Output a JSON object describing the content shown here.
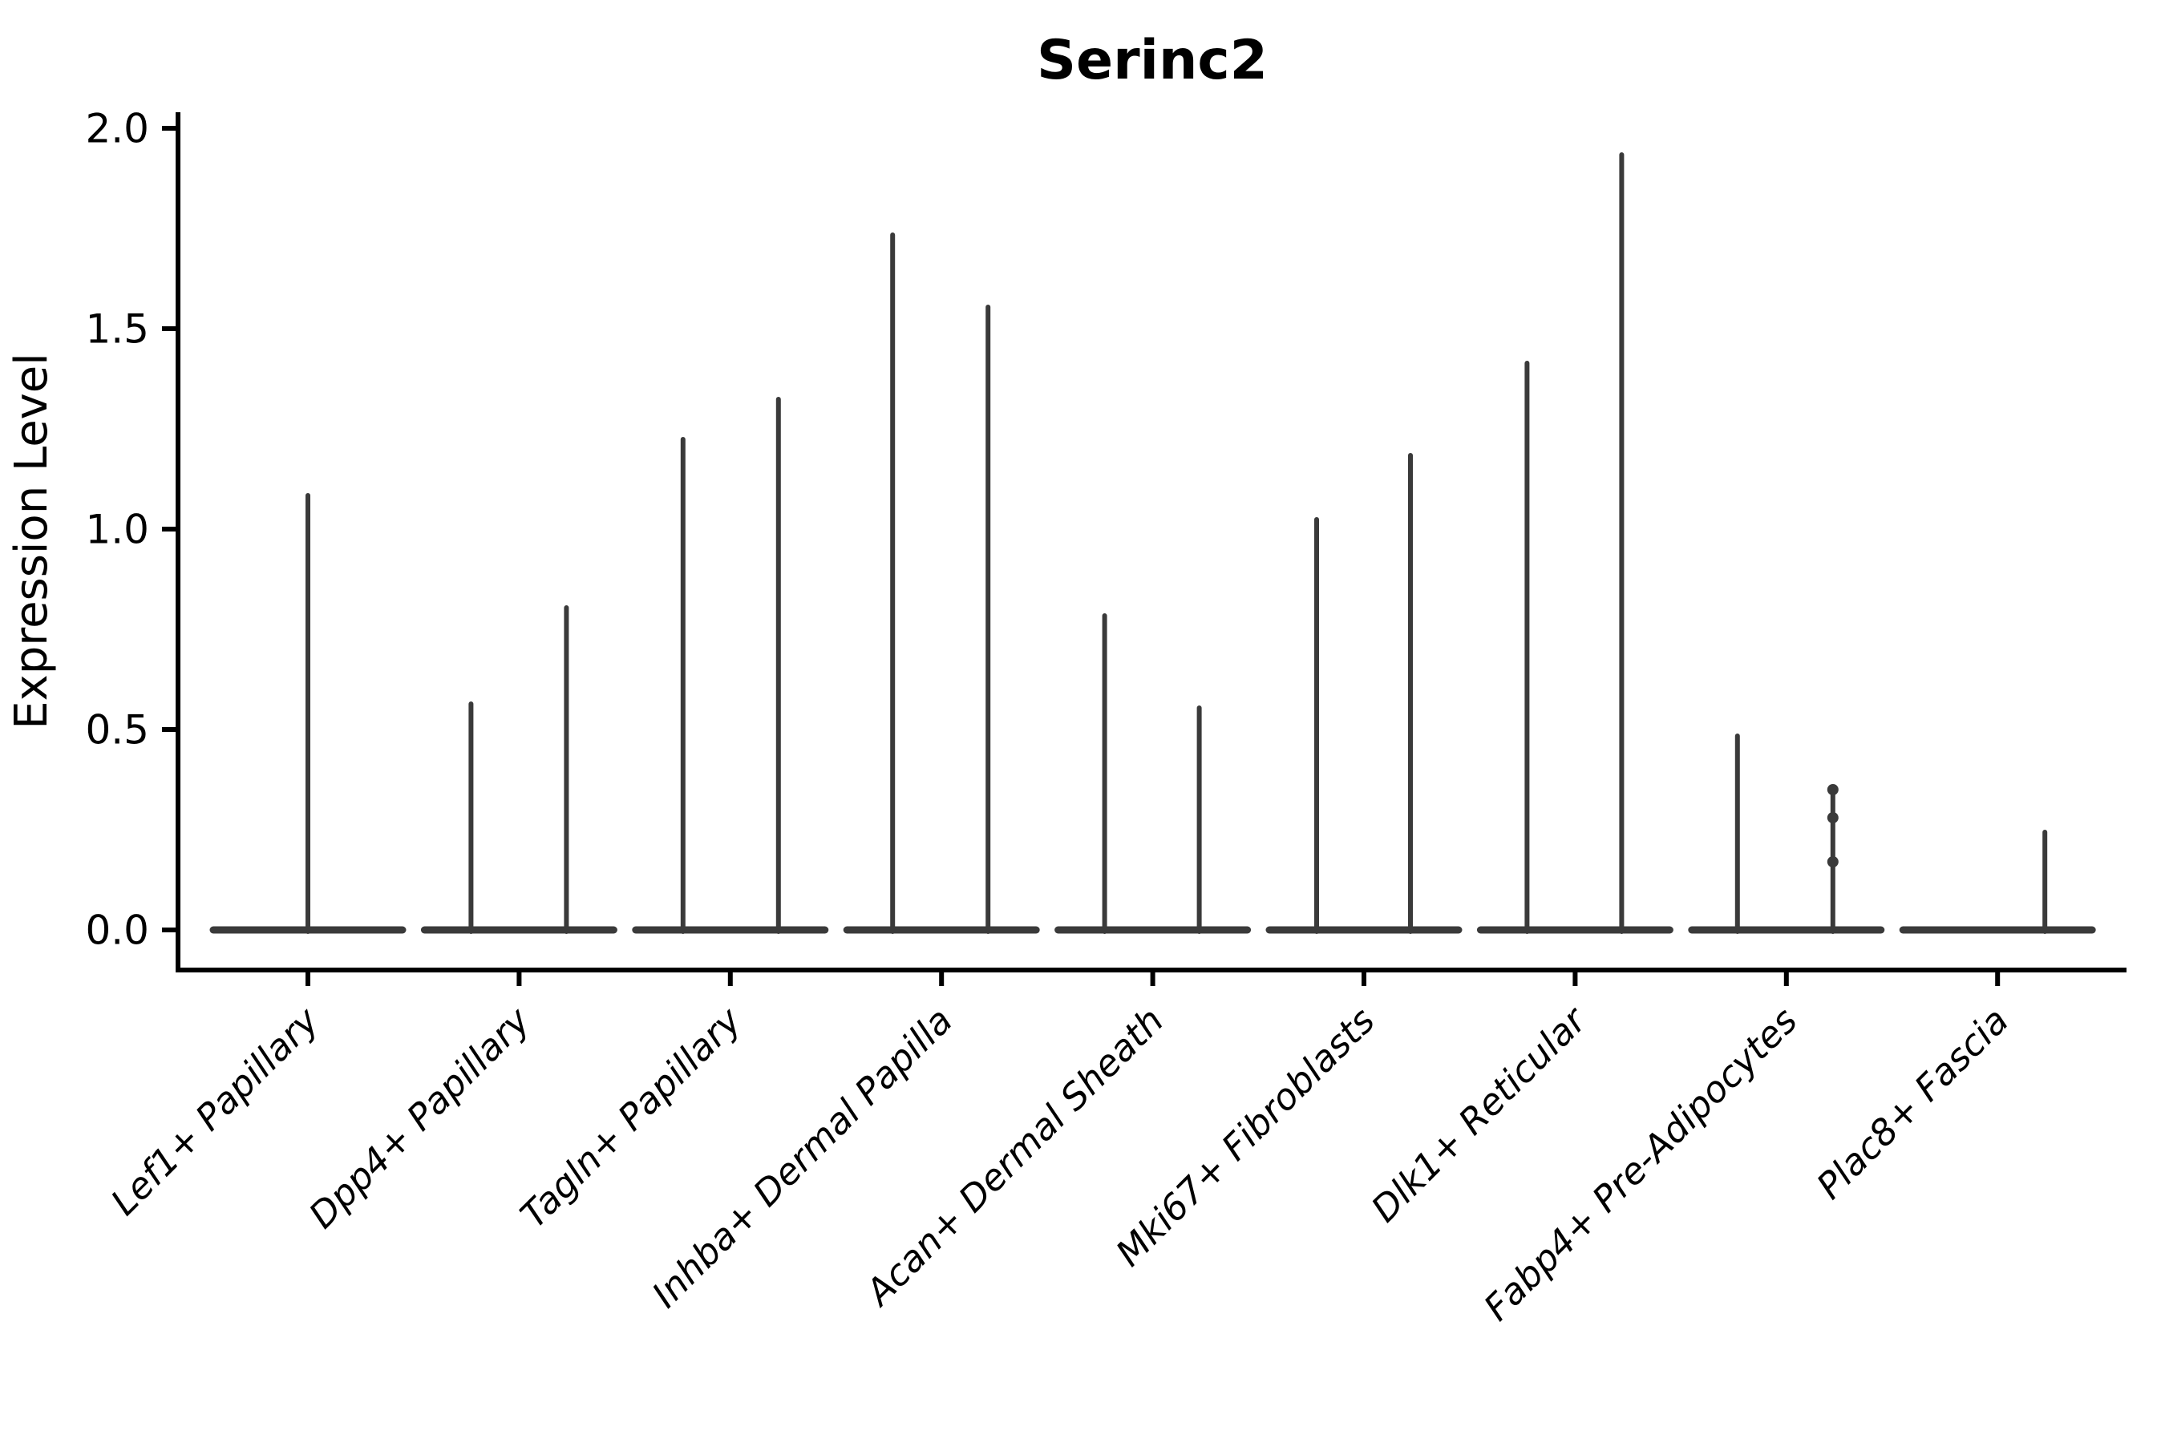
{
  "chart_data": {
    "type": "violin",
    "title": "Serinc2",
    "ylabel": "Expression Level",
    "ylim": [
      0.0,
      2.0
    ],
    "yticks": [
      "0.0",
      "0.5",
      "1.0",
      "1.5",
      "2.0"
    ],
    "grid": false,
    "legend": "none",
    "colors": {
      "violin": "#3a3a3a",
      "axis": "#000000",
      "text": "#000000"
    },
    "note": "Each category shows collapsed violin(s): flat base at expression 0 with thin density spike(s); spike value = max expression level",
    "categories": [
      {
        "label": "Lef1+ Papillary",
        "violins": [
          {
            "offset": 0,
            "max": 1.09
          }
        ]
      },
      {
        "label": "Dpp4+ Papillary",
        "violins": [
          {
            "offset": -60,
            "max": 0.57
          },
          {
            "offset": 59,
            "max": 0.81
          }
        ]
      },
      {
        "label": "Tagln+ Papillary",
        "violins": [
          {
            "offset": -59,
            "max": 1.23
          },
          {
            "offset": 60,
            "max": 1.33
          }
        ]
      },
      {
        "label": "Inhba+ Dermal Papilla",
        "violins": [
          {
            "offset": -61,
            "max": 1.74
          },
          {
            "offset": 58,
            "max": 1.56
          }
        ]
      },
      {
        "label": "Acan+ Dermal Sheath",
        "violins": [
          {
            "offset": -60,
            "max": 0.79
          },
          {
            "offset": 58,
            "max": 0.56
          }
        ]
      },
      {
        "label": "Mki67+ Fibroblasts",
        "violins": [
          {
            "offset": -59,
            "max": 1.03
          },
          {
            "offset": 58,
            "max": 1.19
          }
        ]
      },
      {
        "label": "Dlk1+ Reticular",
        "violins": [
          {
            "offset": -60,
            "max": 1.42
          },
          {
            "offset": 58,
            "max": 1.94
          }
        ]
      },
      {
        "label": "Fabp4+ Pre-Adipocytes",
        "violins": [
          {
            "offset": -61,
            "max": 0.49
          },
          {
            "offset": 58,
            "max": 0.35,
            "dots": [
              0.35,
              0.28,
              0.17
            ]
          }
        ]
      },
      {
        "label": "Plac8+ Fascia",
        "violins": [
          {
            "offset": 59,
            "max": 0.25
          }
        ]
      }
    ]
  }
}
